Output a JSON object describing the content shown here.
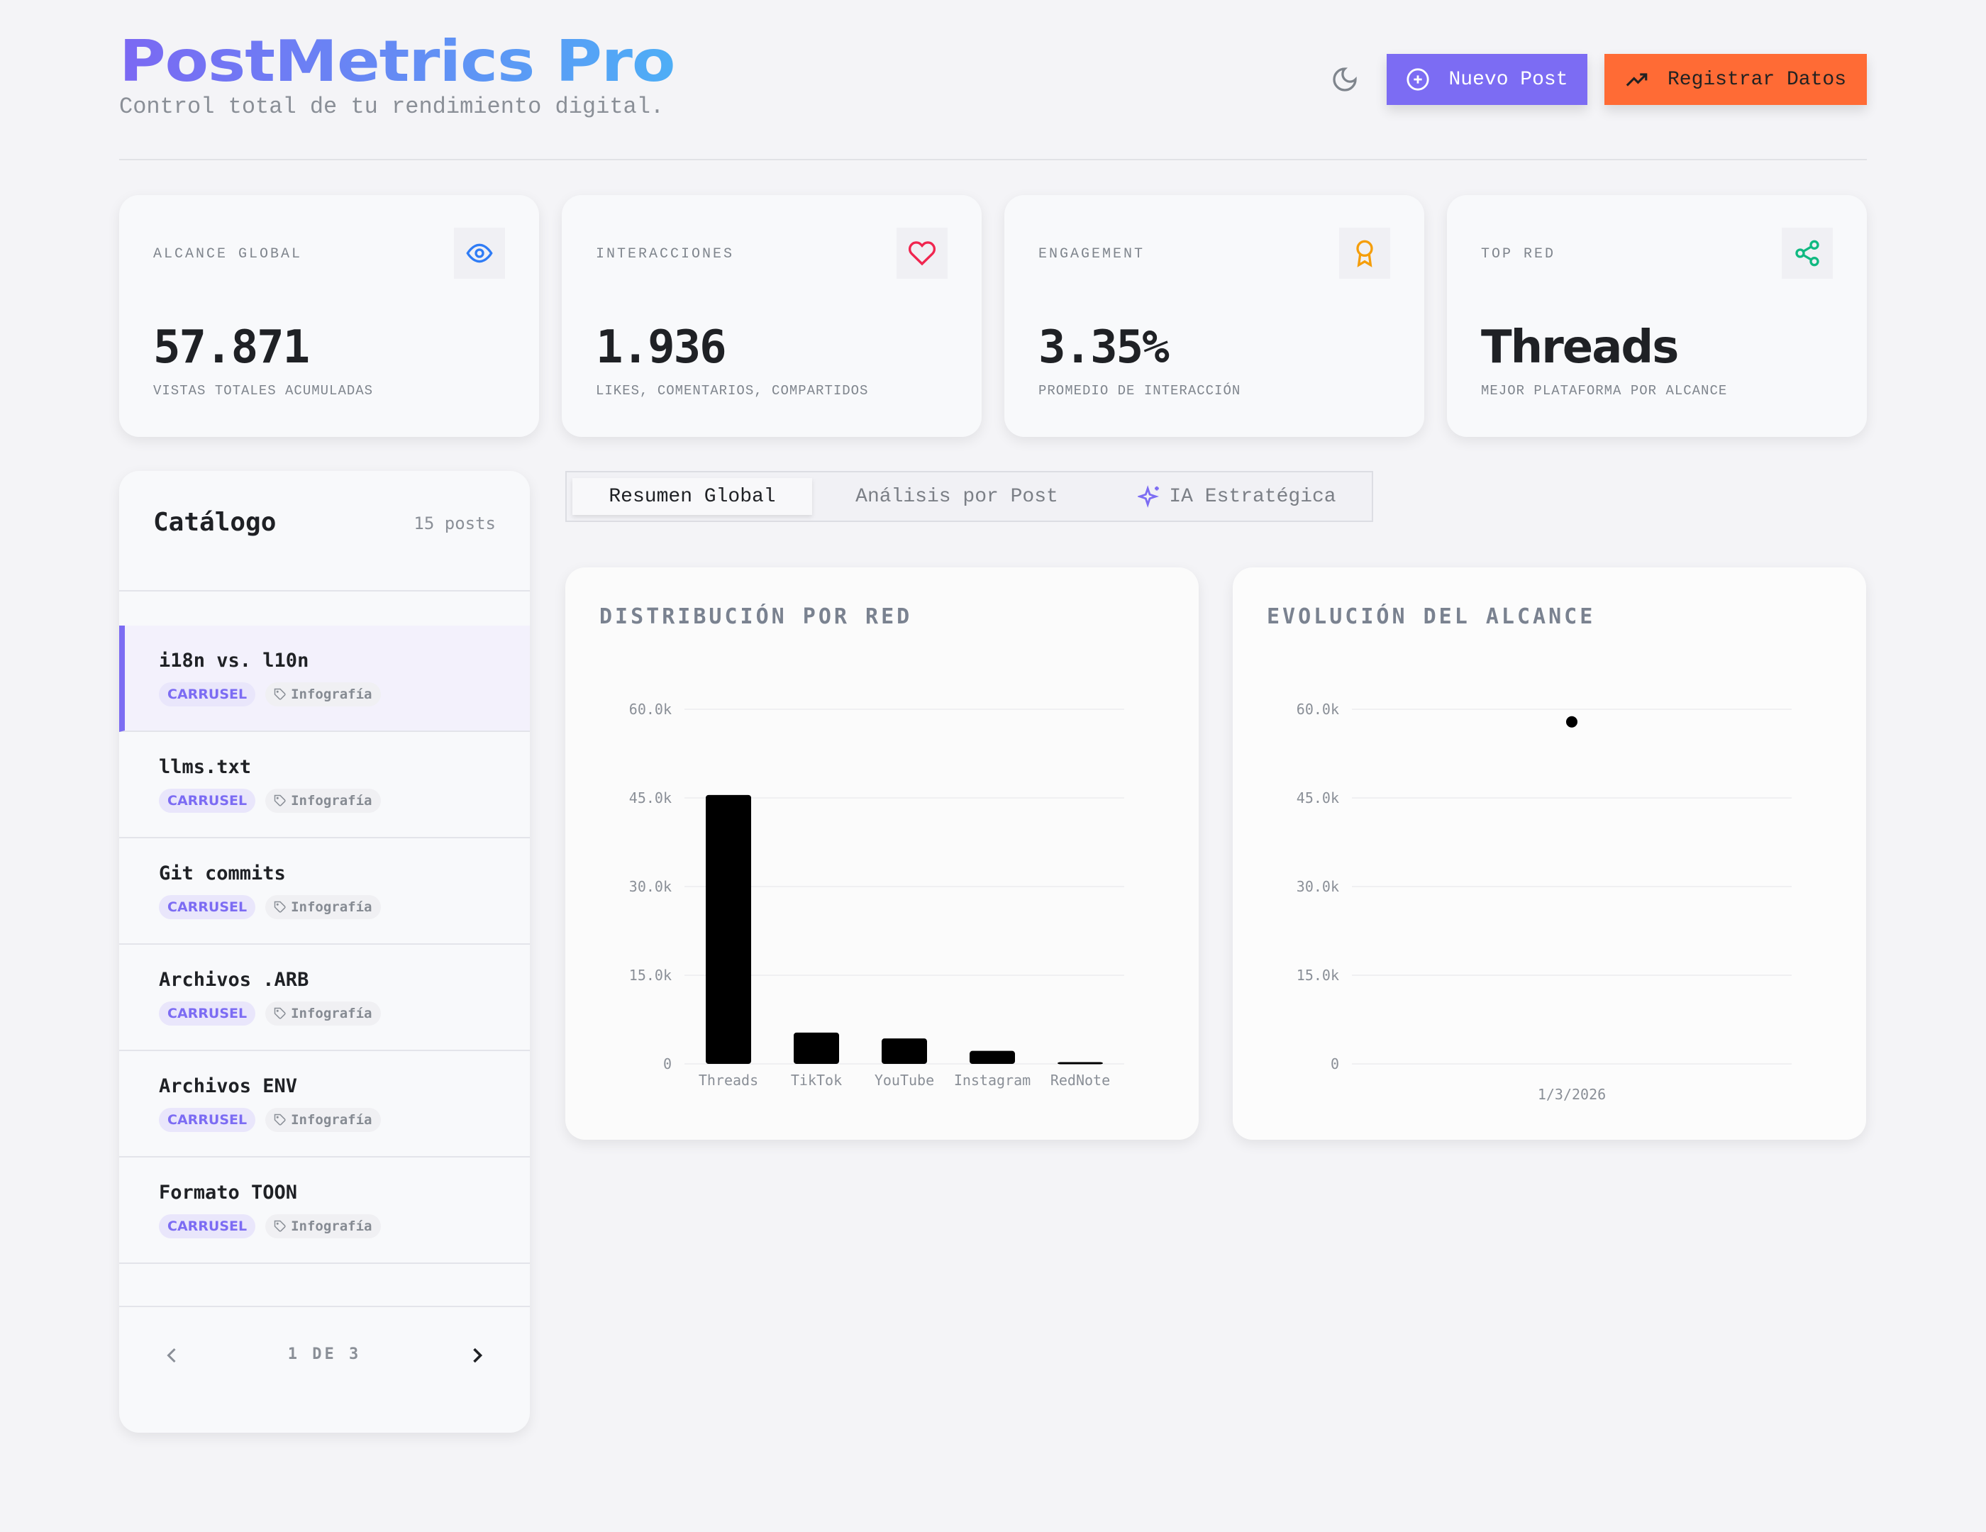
{
  "header": {
    "title": "PostMetrics Pro",
    "subtitle": "Control total de tu rendimiento digital.",
    "theme_toggle_icon": "moon-icon",
    "new_post_label": "Nuevo Post",
    "register_label": "Registrar Datos",
    "colors": {
      "primary": "#7c6cf3",
      "secondary": "#ff6b35"
    }
  },
  "stats": [
    {
      "label": "ALCANCE GLOBAL",
      "value": "57.871",
      "sub": "VISTAS TOTALES ACUMULADAS",
      "icon": "eye-icon",
      "color": "#2f7cf6"
    },
    {
      "label": "INTERACCIONES",
      "value": "1.936",
      "sub": "LIKES, COMENTARIOS, COMPARTIDOS",
      "icon": "heart-icon",
      "color": "#f0254f"
    },
    {
      "label": "ENGAGEMENT",
      "value": "3.35%",
      "sub": "PROMEDIO DE INTERACCIÓN",
      "icon": "award-icon",
      "color": "#f59e0b"
    },
    {
      "label": "TOP RED",
      "value": "Threads",
      "sub": "MEJOR PLATAFORMA POR ALCANCE",
      "icon": "share-icon",
      "color": "#10b981"
    }
  ],
  "catalog": {
    "title": "Catálogo",
    "count": "15 posts",
    "items": [
      {
        "title": "i18n vs. l10n",
        "format": "CARRUSEL",
        "category": "Infografía",
        "selected": true
      },
      {
        "title": "llms.txt",
        "format": "CARRUSEL",
        "category": "Infografía"
      },
      {
        "title": "Git commits",
        "format": "CARRUSEL",
        "category": "Infografía"
      },
      {
        "title": "Archivos .ARB",
        "format": "CARRUSEL",
        "category": "Infografía"
      },
      {
        "title": "Archivos ENV",
        "format": "CARRUSEL",
        "category": "Infografía"
      },
      {
        "title": "Formato TOON",
        "format": "CARRUSEL",
        "category": "Infografía"
      }
    ],
    "pagination": "1 DE 3"
  },
  "tabs": [
    {
      "label": "Resumen Global",
      "active": true
    },
    {
      "label": "Análisis por Post"
    },
    {
      "label": "IA Estratégica",
      "icon": "sparkles-icon"
    }
  ],
  "chart_data": [
    {
      "type": "bar",
      "title": "DISTRIBUCIÓN POR RED",
      "categories": [
        "Threads",
        "TikTok",
        "YouTube",
        "Instagram",
        "RedNote"
      ],
      "values": [
        45500,
        5300,
        4300,
        2200,
        300
      ],
      "ylim": [
        0,
        60000
      ],
      "yticks": [
        "0",
        "15.0k",
        "30.0k",
        "45.0k",
        "60.0k"
      ],
      "grid": true,
      "color": "#000000"
    },
    {
      "type": "line",
      "title": "EVOLUCIÓN DEL ALCANCE",
      "x": [
        "1/3/2026"
      ],
      "values": [
        57871
      ],
      "ylim": [
        0,
        60000
      ],
      "yticks": [
        "0",
        "15.0k",
        "30.0k",
        "45.0k",
        "60.0k"
      ],
      "grid": true,
      "color": "#000000"
    }
  ]
}
